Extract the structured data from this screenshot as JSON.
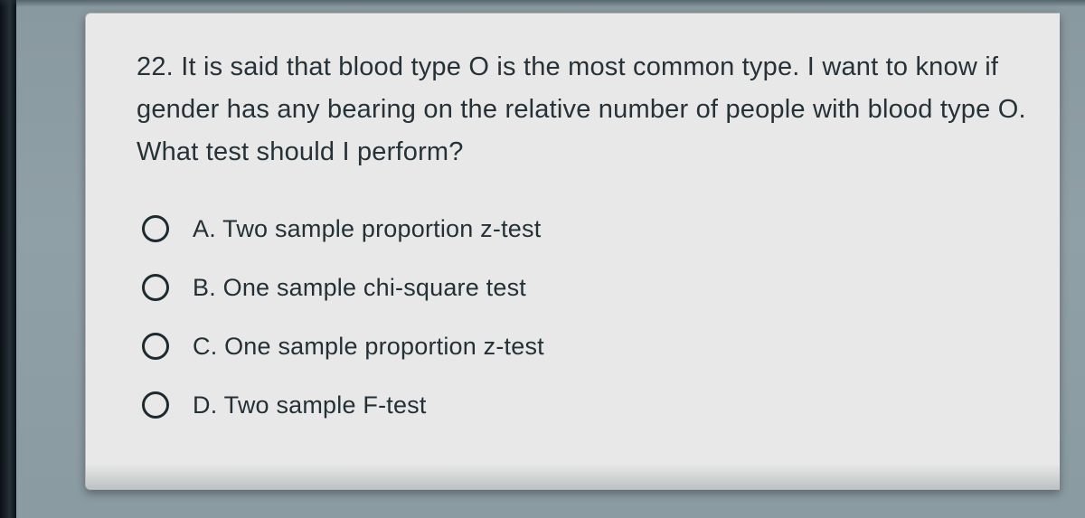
{
  "question": {
    "number": "22.",
    "text": "It is said that blood type O is the most common type. I want to know if gender has any bearing on the relative number of people with blood type O. What test should I perform?"
  },
  "options": [
    {
      "letter": "A.",
      "text": "Two sample proportion z-test"
    },
    {
      "letter": "B.",
      "text": "One sample chi-square test"
    },
    {
      "letter": "C.",
      "text": "One sample proportion z-test"
    },
    {
      "letter": "D.",
      "text": "Two sample F-test"
    }
  ],
  "colors": {
    "card_bg": "#e8e8e8",
    "text": "#263238",
    "radio_border": "#1d2a30",
    "backdrop": "#93a6ad"
  }
}
